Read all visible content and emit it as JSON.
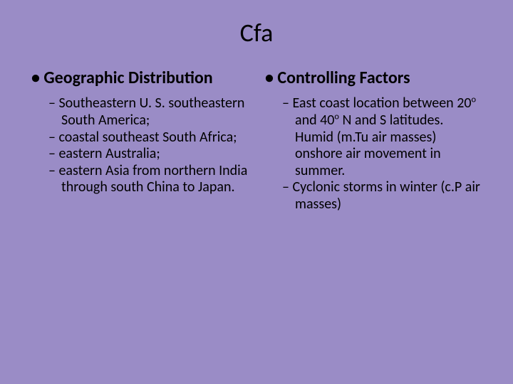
{
  "background_color": "#9a8cc6",
  "text_color": "#000000",
  "title": "Cfa",
  "title_fontsize": 36,
  "heading_fontsize": 24,
  "body_fontsize": 20,
  "columns": [
    {
      "heading": "Geographic Distribution",
      "items": [
        "Southeastern U. S. southeastern South America;",
        "coastal southeast South Africa;",
        "eastern Australia;",
        "eastern Asia from northern India through south China to Japan."
      ]
    },
    {
      "heading": "Controlling Factors",
      "items": [
        "East coast location between 20° and 40° N and S latitudes. Humid (m.Tu air masses) onshore air movement in summer.",
        "Cyclonic storms in winter (c.P air masses)"
      ],
      "items_html": [
        "East coast location between 20<sup>o</sup> and 40<sup>o</sup> N and S latitudes. Humid (m.Tu air masses) onshore air movement in summer.",
        "Cyclonic storms in winter (c.P air masses)"
      ]
    }
  ]
}
